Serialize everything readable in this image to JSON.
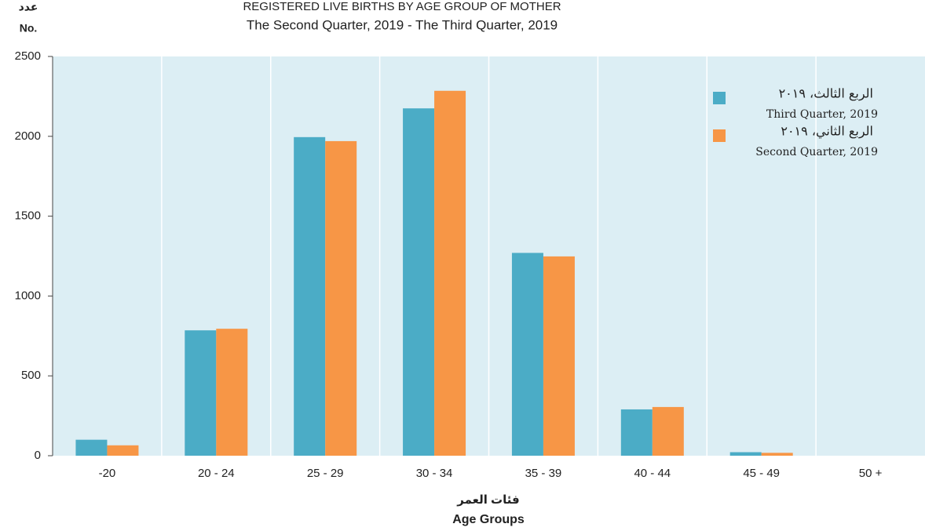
{
  "chart_data": {
    "type": "bar",
    "title": "REGISTERED LIVE BIRTHS BY AGE GROUP OF MOTHER",
    "subtitle": "The Second Quarter, 2019 - The Third Quarter, 2019",
    "y_label_ar": "عدد",
    "y_label": "No.",
    "x_label_ar": "فئات العمر",
    "x_label": "Age Groups",
    "categories": [
      "-20",
      "20 - 24",
      "25 - 29",
      "30 - 34",
      "35 - 39",
      "40 - 44",
      "45 - 49",
      "50 +"
    ],
    "series": [
      {
        "name_ar": "الربع الثالث، ٢٠١٩",
        "name": "Third Quarter, 2019",
        "color": "#4bacc6",
        "values": [
          100,
          785,
          1995,
          2175,
          1270,
          290,
          22,
          0
        ]
      },
      {
        "name_ar": "الربع الثاني، ٢٠١٩",
        "name": "Second Quarter, 2019",
        "color": "#f79646",
        "values": [
          65,
          795,
          1970,
          2285,
          1248,
          305,
          18,
          0
        ]
      }
    ],
    "ylim": [
      0,
      2500
    ],
    "yticks": [
      0,
      500,
      1000,
      1500,
      2000,
      2500
    ],
    "grid": true,
    "legend": "top-right"
  }
}
